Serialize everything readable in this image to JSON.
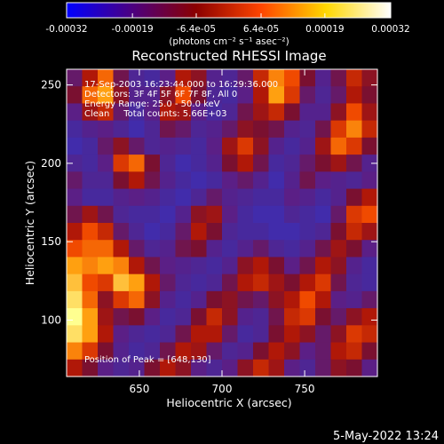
{
  "chart_data": {
    "type": "heatmap",
    "title": "Reconstructed RHESSI Image",
    "xlabel": "Heliocentric X (arcsec)",
    "ylabel": "Heliocentric Y (arcsec)",
    "xlim": [
      606,
      794
    ],
    "ylim": [
      64,
      260
    ],
    "x_ticks": [
      "650",
      "700",
      "750"
    ],
    "x_tick_values": [
      650,
      700,
      750
    ],
    "y_ticks": [
      "100",
      "150",
      "200",
      "250"
    ],
    "y_tick_values": [
      100,
      150,
      200,
      250
    ],
    "colorbar": {
      "min": -0.00032,
      "max": 0.00032,
      "ticks": [
        "-0.00032",
        "-0.00019",
        "-6.4e-05",
        "6.4e-05",
        "0.00019",
        "0.00032"
      ],
      "tick_values": [
        -0.00032,
        -0.00019,
        -6.4e-05,
        6.4e-05,
        0.00019,
        0.00032
      ],
      "unit_label": "(photons cm⁻² s⁻¹ asec⁻²)",
      "colors": [
        "#0000ff",
        "#4b0082",
        "#8b0000",
        "#ff4500",
        "#ffd700",
        "#ffffff"
      ]
    },
    "annotations": {
      "time_range": "17-Sep-2003 16:23:44.000 to 16:29:36.000",
      "detectors": "Detectors: 3F 4F 5F 6F 7F 8F, All 0",
      "energy_range": "Energy Range: 25.0 - 50.0 keV",
      "clean": "Clean     Total counts: 5.66E+03",
      "peak": "Position of Peak = [648,130]"
    },
    "peak_position": [
      648,
      130
    ],
    "grid": false,
    "pixel_grid": [
      [
        0.3,
        0.55,
        0.75,
        0.35,
        0.15,
        0.1,
        0.25,
        0.55,
        0.45,
        0.2,
        0.15,
        0.3,
        0.6,
        0.8,
        0.7,
        0.4,
        0.2,
        0.35,
        0.6,
        0.45
      ],
      [
        0.4,
        0.75,
        0.85,
        0.45,
        0.2,
        0.2,
        0.45,
        0.7,
        0.4,
        0.15,
        0.1,
        0.25,
        0.55,
        0.85,
        0.65,
        0.3,
        0.15,
        0.3,
        0.55,
        0.4
      ],
      [
        0.25,
        0.5,
        0.6,
        0.3,
        0.1,
        0.25,
        0.55,
        0.5,
        0.25,
        0.1,
        0.15,
        0.35,
        0.5,
        0.6,
        0.4,
        0.2,
        0.2,
        0.45,
        0.7,
        0.5
      ],
      [
        0.1,
        0.2,
        0.25,
        0.15,
        0.05,
        0.15,
        0.35,
        0.3,
        0.15,
        0.2,
        0.3,
        0.45,
        0.4,
        0.35,
        0.2,
        0.15,
        0.35,
        0.65,
        0.8,
        0.6
      ],
      [
        0.05,
        0.1,
        0.3,
        0.45,
        0.3,
        0.15,
        0.2,
        0.15,
        0.1,
        0.25,
        0.5,
        0.65,
        0.45,
        0.2,
        0.1,
        0.2,
        0.5,
        0.75,
        0.65,
        0.4
      ],
      [
        0.15,
        0.1,
        0.25,
        0.65,
        0.75,
        0.4,
        0.15,
        0.05,
        0.1,
        0.2,
        0.4,
        0.55,
        0.35,
        0.1,
        0.15,
        0.3,
        0.4,
        0.5,
        0.35,
        0.2
      ],
      [
        0.3,
        0.15,
        0.15,
        0.4,
        0.55,
        0.35,
        0.2,
        0.1,
        0.05,
        0.1,
        0.25,
        0.3,
        0.2,
        0.05,
        0.2,
        0.35,
        0.25,
        0.2,
        0.15,
        0.25
      ],
      [
        0.25,
        0.1,
        0.1,
        0.2,
        0.25,
        0.2,
        0.1,
        0.05,
        0.15,
        0.3,
        0.2,
        0.15,
        0.1,
        0.1,
        0.25,
        0.2,
        0.1,
        0.2,
        0.4,
        0.55
      ],
      [
        0.35,
        0.5,
        0.35,
        0.15,
        0.1,
        0.1,
        0.05,
        0.2,
        0.45,
        0.5,
        0.25,
        0.1,
        0.05,
        0.05,
        0.15,
        0.1,
        0.05,
        0.3,
        0.65,
        0.7
      ],
      [
        0.55,
        0.7,
        0.6,
        0.3,
        0.15,
        0.05,
        0.1,
        0.3,
        0.55,
        0.4,
        0.15,
        0.1,
        0.1,
        0.05,
        0.05,
        0.1,
        0.15,
        0.4,
        0.6,
        0.5
      ],
      [
        0.7,
        0.75,
        0.75,
        0.55,
        0.3,
        0.15,
        0.2,
        0.35,
        0.4,
        0.2,
        0.1,
        0.2,
        0.3,
        0.15,
        0.1,
        0.2,
        0.35,
        0.5,
        0.4,
        0.25
      ],
      [
        0.85,
        0.8,
        0.85,
        0.8,
        0.55,
        0.35,
        0.25,
        0.2,
        0.15,
        0.1,
        0.2,
        0.45,
        0.55,
        0.4,
        0.25,
        0.35,
        0.55,
        0.45,
        0.2,
        0.1
      ],
      [
        0.9,
        0.7,
        0.65,
        0.9,
        0.85,
        0.55,
        0.3,
        0.15,
        0.1,
        0.15,
        0.35,
        0.55,
        0.6,
        0.5,
        0.4,
        0.55,
        0.65,
        0.35,
        0.15,
        0.1
      ],
      [
        0.95,
        0.75,
        0.45,
        0.65,
        0.75,
        0.45,
        0.2,
        0.1,
        0.2,
        0.4,
        0.45,
        0.35,
        0.3,
        0.45,
        0.55,
        0.7,
        0.55,
        0.25,
        0.2,
        0.3
      ],
      [
        1.0,
        0.85,
        0.5,
        0.35,
        0.4,
        0.25,
        0.1,
        0.15,
        0.4,
        0.6,
        0.45,
        0.2,
        0.15,
        0.35,
        0.6,
        0.65,
        0.4,
        0.3,
        0.45,
        0.55
      ],
      [
        0.95,
        0.85,
        0.55,
        0.25,
        0.15,
        0.1,
        0.15,
        0.35,
        0.55,
        0.55,
        0.3,
        0.1,
        0.15,
        0.4,
        0.55,
        0.45,
        0.3,
        0.45,
        0.65,
        0.6
      ],
      [
        0.8,
        0.65,
        0.4,
        0.2,
        0.1,
        0.15,
        0.35,
        0.55,
        0.5,
        0.3,
        0.15,
        0.2,
        0.4,
        0.55,
        0.45,
        0.25,
        0.3,
        0.55,
        0.6,
        0.4
      ],
      [
        0.55,
        0.4,
        0.25,
        0.15,
        0.2,
        0.4,
        0.55,
        0.45,
        0.25,
        0.15,
        0.25,
        0.45,
        0.6,
        0.5,
        0.25,
        0.15,
        0.3,
        0.45,
        0.4,
        0.25
      ]
    ]
  },
  "footer": {
    "date": "5-May-2022 13:24"
  }
}
